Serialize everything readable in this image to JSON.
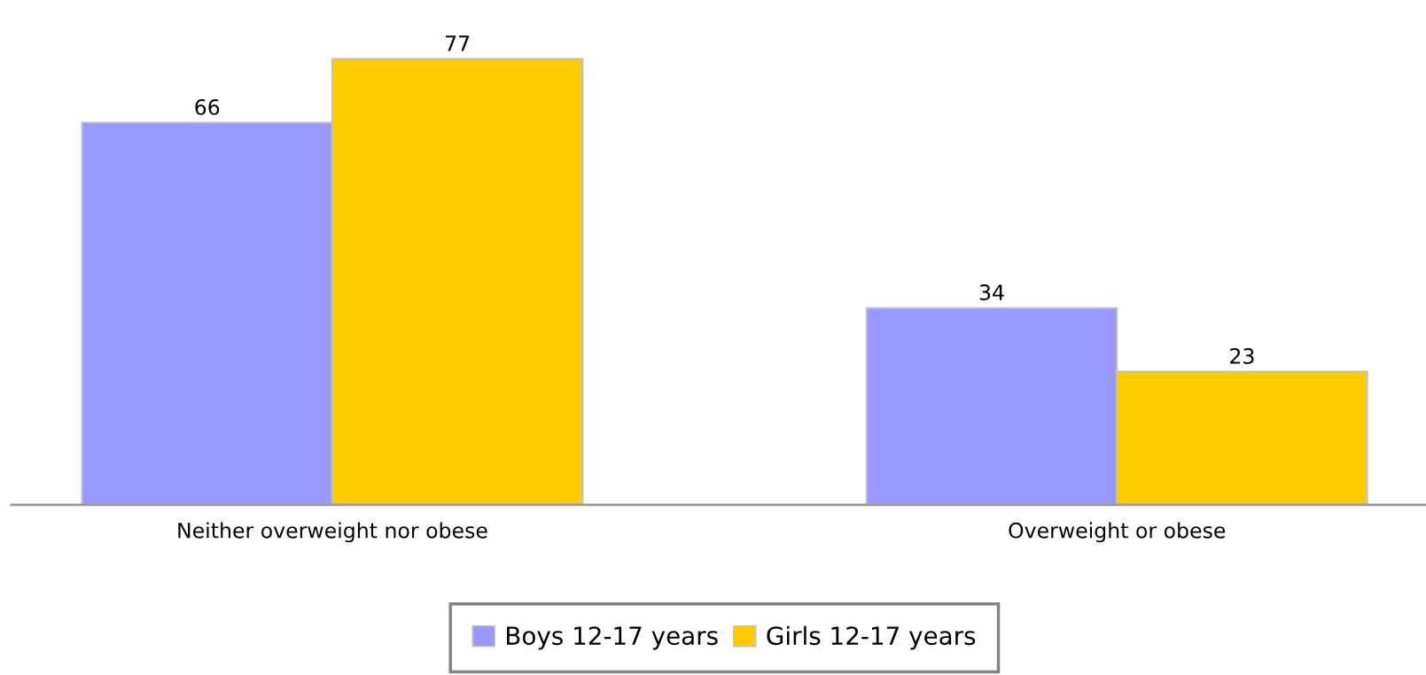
{
  "chart_data": {
    "type": "bar",
    "categories": [
      "Neither overweight nor obese",
      "Overweight or obese"
    ],
    "series": [
      {
        "name": "Boys 12-17 years",
        "color": "#9999ff",
        "values": [
          66,
          34
        ]
      },
      {
        "name": "Girls 12-17 years",
        "color": "#ffcc00",
        "values": [
          77,
          23
        ]
      }
    ],
    "data_labels": true,
    "legend": "bottom",
    "grid": false
  }
}
